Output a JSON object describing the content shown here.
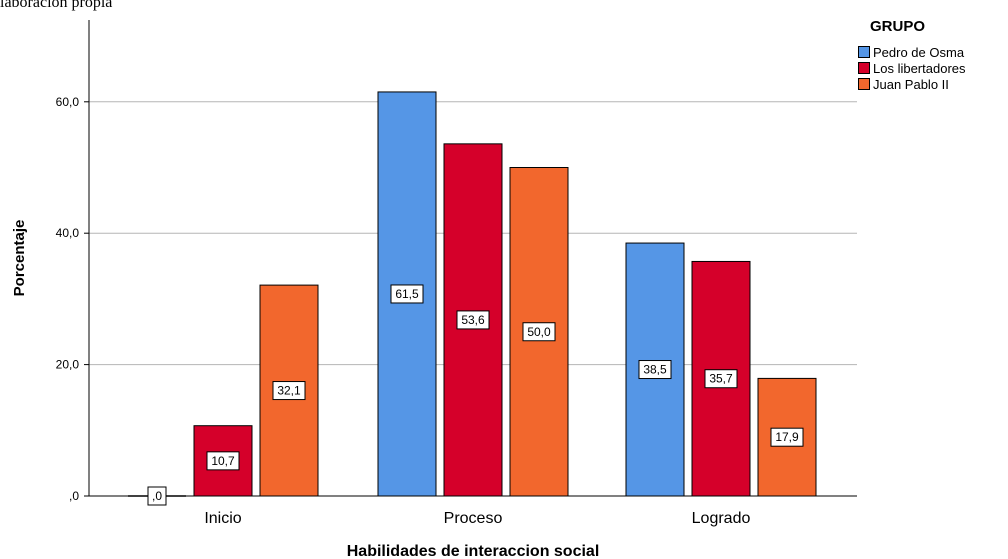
{
  "source_note": "laboración propia",
  "chart_data": {
    "type": "bar",
    "title": "",
    "xlabel": "Habilidades de interaccion social",
    "ylabel": "Porcentaje",
    "ylim": [
      0,
      70
    ],
    "yticks": [
      0,
      20,
      40,
      60
    ],
    "ytick_labels": [
      ",0",
      "20,0",
      "40,0",
      "60,0"
    ],
    "grid": true,
    "legend_title": "GRUPO",
    "legend_position": "top-right",
    "categories": [
      "Inicio",
      "Proceso",
      "Logrado"
    ],
    "series": [
      {
        "name": "Pedro de Osma",
        "color": "#5596e6",
        "values": [
          0.0,
          61.5,
          38.5
        ],
        "labels": [
          ",0",
          "61,5",
          "38,5"
        ]
      },
      {
        "name": "Los libertadores",
        "color": "#d5002a",
        "values": [
          10.7,
          53.6,
          35.7
        ],
        "labels": [
          "10,7",
          "53,6",
          "35,7"
        ]
      },
      {
        "name": "Juan Pablo II",
        "color": "#f2672d",
        "values": [
          32.1,
          50.0,
          17.9
        ],
        "labels": [
          "32,1",
          "50,0",
          "17,9"
        ]
      }
    ]
  }
}
